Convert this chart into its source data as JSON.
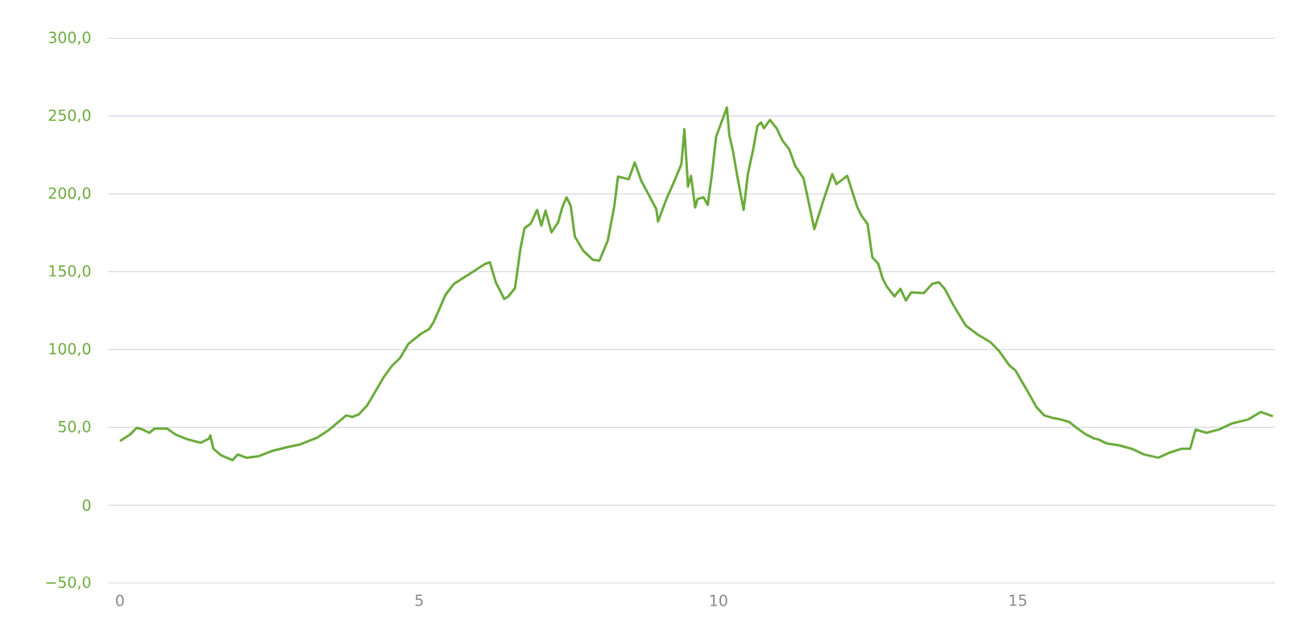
{
  "chart_data": {
    "type": "line",
    "x": [
      0,
      0.17,
      0.28,
      0.38,
      0.49,
      0.58,
      0.79,
      0.93,
      1.14,
      1.35,
      1.49,
      1.51,
      1.56,
      1.69,
      1.88,
      1.97,
      2.11,
      2.32,
      2.53,
      2.81,
      3.01,
      3.29,
      3.5,
      3.78,
      3.88,
      3.99,
      4.13,
      4.4,
      4.54,
      4.68,
      4.82,
      5.03,
      5.17,
      5.24,
      5.44,
      5.58,
      5.86,
      6.1,
      6.18,
      6.28,
      6.42,
      6.49,
      6.6,
      6.69,
      6.76,
      6.86,
      6.97,
      7.04,
      7.11,
      7.21,
      7.32,
      7.39,
      7.46,
      7.53,
      7.6,
      7.74,
      7.9,
      8.01,
      8.15,
      8.26,
      8.32,
      8.5,
      8.6,
      8.71,
      8.96,
      8.99,
      9.13,
      9.24,
      9.38,
      9.43,
      9.49,
      9.54,
      9.61,
      9.65,
      9.75,
      9.82,
      9.89,
      9.96,
      10.14,
      10.18,
      10.24,
      10.32,
      10.42,
      10.49,
      10.58,
      10.65,
      10.71,
      10.76,
      10.86,
      10.97,
      11.07,
      11.18,
      11.28,
      11.42,
      11.51,
      11.6,
      11.76,
      11.9,
      11.97,
      12.15,
      12.32,
      12.39,
      12.49,
      12.57,
      12.67,
      12.74,
      12.81,
      12.94,
      13.04,
      13.13,
      13.22,
      13.43,
      13.57,
      13.68,
      13.78,
      13.92,
      14.13,
      14.33,
      14.54,
      14.68,
      14.86,
      14.96,
      15.17,
      15.31,
      15.44,
      15.58,
      15.72,
      15.86,
      16.0,
      16.14,
      16.28,
      16.35,
      16.49,
      16.69,
      16.9,
      17.11,
      17.35,
      17.53,
      17.74,
      17.88,
      17.97,
      18.15,
      18.36,
      18.57,
      18.85,
      19.06,
      19.26
    ],
    "series": [
      {
        "color": "#6aaa3a",
        "values": [
          41.2,
          45.4,
          49.7,
          48.6,
          46.5,
          49.2,
          49.2,
          45.4,
          42.2,
          40.1,
          42.8,
          44.9,
          36.3,
          32.1,
          28.9,
          32.6,
          30.5,
          31.5,
          34.7,
          37.4,
          39.0,
          43.3,
          48.6,
          57.7,
          56.7,
          58.3,
          64.1,
          81.8,
          89.3,
          94.6,
          103.7,
          110.1,
          113.3,
          117.6,
          135.2,
          142.2,
          149.1,
          155.0,
          156.1,
          143.2,
          132.5,
          134.2,
          139.5,
          164.6,
          178.0,
          180.7,
          189.7,
          179.6,
          189.2,
          175.3,
          181.7,
          191.3,
          197.8,
          192.4,
          172.6,
          163.5,
          157.7,
          157.1,
          170.0,
          192.4,
          211.1,
          209.4,
          220.2,
          208.4,
          190.3,
          182.3,
          196.7,
          206.3,
          219.1,
          241.6,
          204.7,
          211.6,
          191.3,
          196.7,
          197.8,
          192.9,
          212.7,
          236.8,
          255.5,
          237.8,
          227.7,
          210.0,
          189.7,
          212.7,
          228.8,
          243.7,
          245.9,
          242.2,
          247.5,
          242.2,
          234.1,
          228.8,
          218.1,
          210.0,
          194.0,
          177.4,
          196.7,
          212.7,
          206.3,
          211.6,
          191.3,
          186.0,
          180.7,
          159.3,
          155.0,
          145.9,
          140.6,
          134.2,
          139.0,
          131.5,
          136.8,
          136.3,
          142.2,
          143.2,
          139.0,
          128.8,
          115.4,
          109.6,
          104.8,
          99.4,
          89.8,
          86.6,
          72.7,
          63.1,
          57.7,
          56.1,
          55.1,
          53.4,
          49.2,
          45.4,
          42.8,
          42.2,
          39.6,
          38.5,
          36.3,
          32.6,
          30.5,
          33.7,
          36.3,
          36.3,
          48.6,
          46.5,
          48.6,
          52.4,
          55.1,
          59.9,
          57.2
        ]
      }
    ],
    "xlim": [
      -0.2,
      19.3
    ],
    "xticks": [
      0,
      5,
      10,
      15
    ],
    "ylim": [
      -50,
      300
    ],
    "yticks": [
      {
        "value": -50,
        "label": "−50,0"
      },
      0,
      {
        "value": 50,
        "label": "50,0"
      },
      {
        "value": 100,
        "label": "100,0"
      },
      {
        "value": 150,
        "label": "150,0"
      },
      {
        "value": 200,
        "label": "200,0"
      },
      {
        "value": 250,
        "label": "250,0"
      },
      {
        "value": 300,
        "label": "300,0"
      }
    ],
    "grid": "y",
    "marker": "none",
    "line_style": "solid"
  }
}
